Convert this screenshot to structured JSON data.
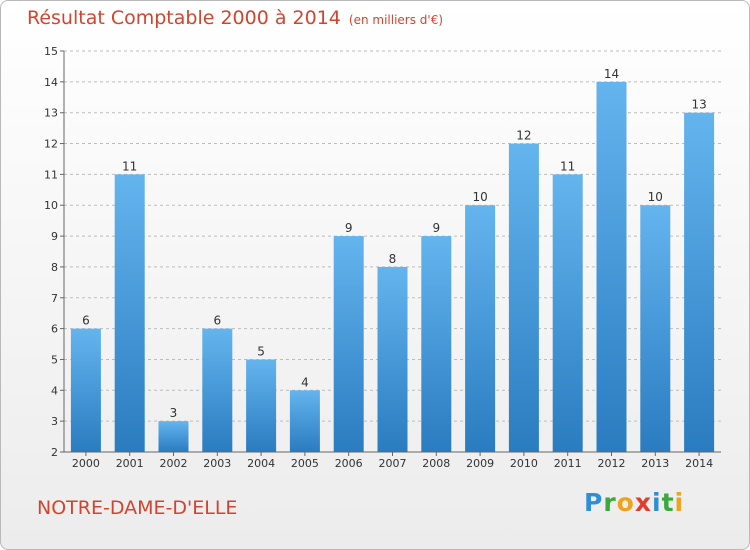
{
  "header": {
    "title": "Résultat Comptable 2000 à 2014",
    "subtitle": "(en milliers d'€)"
  },
  "footer": {
    "town": "NOTRE-DAME-D'ELLE",
    "logo_letters": [
      {
        "char": "P",
        "color": "#2f8fd6"
      },
      {
        "char": "r",
        "color": "#3aa83a"
      },
      {
        "char": "o",
        "color": "#f0a21b"
      },
      {
        "char": "x",
        "color": "#e23c2b"
      },
      {
        "char": "i",
        "color": "#2f8fd6"
      },
      {
        "char": "t",
        "color": "#3aa83a"
      },
      {
        "char": "i",
        "color": "#f0a21b"
      }
    ]
  },
  "colors": {
    "accent": "#d1452e",
    "bar_light": "#64b4ee",
    "bar_dark": "#2a7cc0",
    "grid": "#bdbdbd",
    "axis_text": "#333333"
  },
  "chart_data": {
    "type": "bar",
    "categories": [
      "2000",
      "2001",
      "2002",
      "2003",
      "2004",
      "2005",
      "2006",
      "2007",
      "2008",
      "2009",
      "2010",
      "2011",
      "2012",
      "2013",
      "2014"
    ],
    "values": [
      6,
      11,
      3,
      6,
      5,
      4,
      9,
      8,
      9,
      10,
      12,
      11,
      14,
      10,
      13
    ],
    "data_labels": [
      "6",
      "11",
      "3",
      "6",
      "5",
      "4",
      "9",
      "8",
      "9",
      "10",
      "12",
      "11",
      "14",
      "10",
      "13"
    ],
    "yticks": [
      "2",
      "3",
      "4",
      "5",
      "6",
      "7",
      "8",
      "9",
      "10",
      "11",
      "12",
      "13",
      "14",
      "15"
    ],
    "ylim": [
      2,
      15
    ],
    "grid": true,
    "legend": "none"
  }
}
